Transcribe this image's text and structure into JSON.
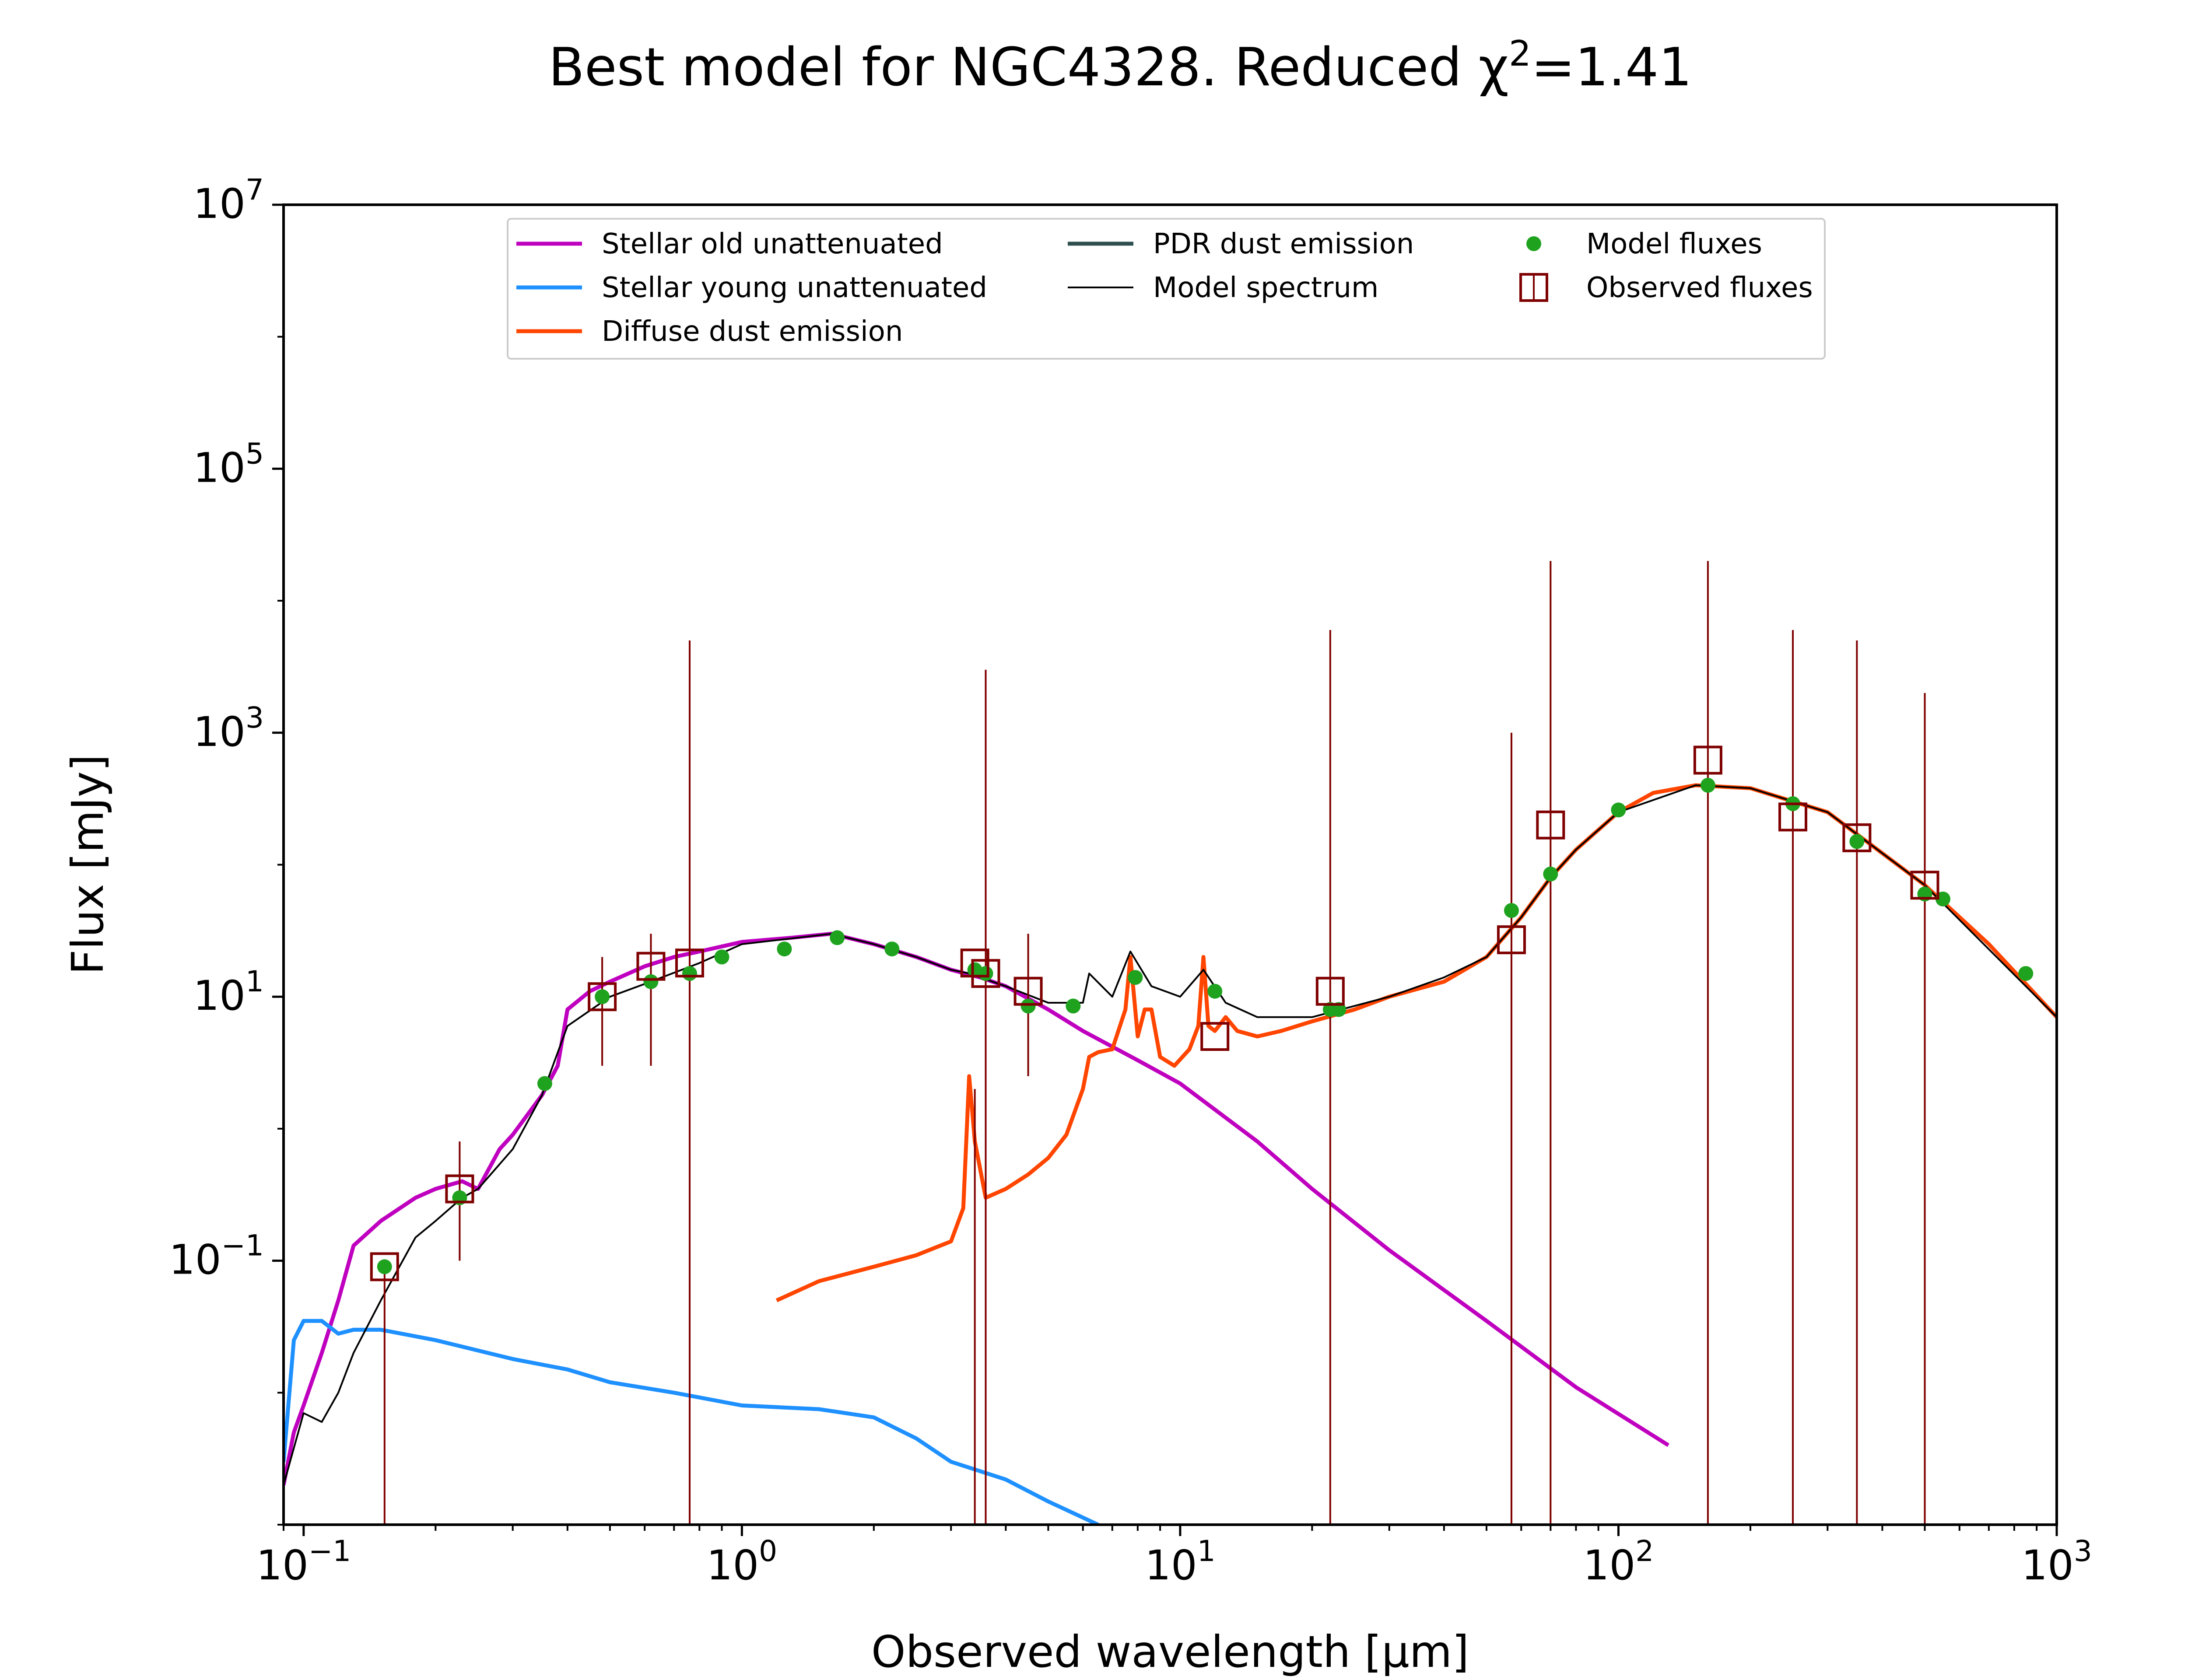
{
  "chart_data": {
    "type": "line",
    "title": "Best model for NGC4328. Reduced χ²=1.41",
    "title_prefix": "Best model for NGC4328. Reduced χ",
    "title_sup": "2",
    "title_suffix": "=1.41",
    "xlabel": "Observed wavelength [μm]",
    "ylabel": "Flux [mJy]",
    "x_scale": "log",
    "y_scale": "log",
    "xlim": [
      0.09,
      1000
    ],
    "ylim": [
      0.001,
      10000000
    ],
    "x_ticks": [
      {
        "base": "10",
        "exp": "−1",
        "value": 0.1
      },
      {
        "base": "10",
        "exp": "0",
        "value": 1
      },
      {
        "base": "10",
        "exp": "1",
        "value": 10
      },
      {
        "base": "10",
        "exp": "2",
        "value": 100
      },
      {
        "base": "10",
        "exp": "3",
        "value": 1000
      }
    ],
    "y_ticks": [
      {
        "base": "10",
        "exp": "−1",
        "value": 0.1
      },
      {
        "base": "10",
        "exp": "1",
        "value": 10
      },
      {
        "base": "10",
        "exp": "3",
        "value": 1000
      },
      {
        "base": "10",
        "exp": "5",
        "value": 100000
      },
      {
        "base": "10",
        "exp": "7",
        "value": 10000000
      }
    ],
    "grid": false,
    "legend_position": "top-center",
    "legend": [
      {
        "label": "Stellar old unattenuated",
        "kind": "line",
        "color": "#bf00bf"
      },
      {
        "label": "Stellar young unattenuated",
        "kind": "line",
        "color": "#1e90ff"
      },
      {
        "label": "Diffuse dust emission",
        "kind": "line",
        "color": "#ff4500"
      },
      {
        "label": "PDR dust emission",
        "kind": "line",
        "color": "#2f4f4f"
      },
      {
        "label": "Model spectrum",
        "kind": "line",
        "color": "#000000"
      },
      {
        "label": "Model fluxes",
        "kind": "dot",
        "color": "#1fa31f"
      },
      {
        "label": "Observed fluxes",
        "kind": "square",
        "color": "#7f0000"
      }
    ],
    "series": [
      {
        "name": "Stellar old unattenuated",
        "color": "#bf00bf",
        "x": [
          0.09,
          0.095,
          0.1,
          0.11,
          0.12,
          0.13,
          0.15,
          0.18,
          0.2,
          0.23,
          0.25,
          0.28,
          0.3,
          0.35,
          0.38,
          0.4,
          0.45,
          0.5,
          0.6,
          0.7,
          0.8,
          1.0,
          1.3,
          1.6,
          2.0,
          2.5,
          3.0,
          3.5,
          4.0,
          5.0,
          6.0,
          8.0,
          10.0,
          15.0,
          20.0,
          30.0,
          50.0,
          80.0,
          130.0
        ],
        "y": [
          0.002,
          0.005,
          0.008,
          0.02,
          0.05,
          0.13,
          0.2,
          0.3,
          0.35,
          0.4,
          0.35,
          0.7,
          0.9,
          1.8,
          3.0,
          8.0,
          11.0,
          13.0,
          17.0,
          20.0,
          22.0,
          26.0,
          28.0,
          30.0,
          25.0,
          20.0,
          16.0,
          14.0,
          12.0,
          8.0,
          5.5,
          3.3,
          2.2,
          0.8,
          0.35,
          0.12,
          0.035,
          0.011,
          0.004
        ]
      },
      {
        "name": "Stellar young unattenuated",
        "color": "#1e90ff",
        "x": [
          0.09,
          0.095,
          0.1,
          0.11,
          0.12,
          0.13,
          0.15,
          0.2,
          0.3,
          0.4,
          0.5,
          0.7,
          1.0,
          1.5,
          2.0,
          2.5,
          3.0,
          4.0,
          5.0,
          6.5
        ],
        "y": [
          0.003,
          0.025,
          0.035,
          0.035,
          0.028,
          0.03,
          0.03,
          0.025,
          0.018,
          0.015,
          0.012,
          0.01,
          0.008,
          0.0075,
          0.0065,
          0.0045,
          0.003,
          0.0022,
          0.0015,
          0.001
        ]
      },
      {
        "name": "Diffuse dust emission",
        "color": "#ff4500",
        "x": [
          1.2,
          1.5,
          2.0,
          2.5,
          3.0,
          3.2,
          3.3,
          3.4,
          3.6,
          4.0,
          4.5,
          5.0,
          5.5,
          6.0,
          6.2,
          6.5,
          7.0,
          7.5,
          7.7,
          8.0,
          8.3,
          8.6,
          9.0,
          9.7,
          10.5,
          11.0,
          11.3,
          11.6,
          12.0,
          12.7,
          13.5,
          15.0,
          17.0,
          20.0,
          25.0,
          30.0,
          40.0,
          50.0,
          60.0,
          70.0,
          80.0,
          100.0,
          120.0,
          150.0,
          200.0,
          300.0,
          500.0,
          700.0,
          1000.0
        ],
        "y": [
          0.05,
          0.07,
          0.09,
          0.11,
          0.14,
          0.25,
          2.5,
          0.8,
          0.3,
          0.35,
          0.45,
          0.6,
          0.9,
          2.0,
          3.5,
          3.8,
          4.0,
          8.0,
          20.0,
          5.0,
          8.0,
          8.0,
          3.5,
          3.0,
          4.0,
          6.0,
          20.0,
          6.0,
          5.5,
          7.0,
          5.5,
          5.0,
          5.5,
          6.5,
          8.0,
          10.0,
          13.0,
          20.0,
          40.0,
          80.0,
          130.0,
          250.0,
          350.0,
          400.0,
          380.0,
          250.0,
          70.0,
          25.0,
          7.0
        ]
      },
      {
        "name": "Model spectrum",
        "color": "#000000",
        "x": [
          0.09,
          0.1,
          0.11,
          0.12,
          0.13,
          0.15,
          0.18,
          0.2,
          0.23,
          0.25,
          0.3,
          0.35,
          0.4,
          0.5,
          0.6,
          0.8,
          1.0,
          1.6,
          2.0,
          2.5,
          3.0,
          3.3,
          3.5,
          4.0,
          5.0,
          6.0,
          6.2,
          7.0,
          7.7,
          8.6,
          10.0,
          11.3,
          12.7,
          15.0,
          20.0,
          30.0,
          40.0,
          50.0,
          60.0,
          70.0,
          80.0,
          100.0,
          150.0,
          200.0,
          300.0,
          500.0,
          1000.0
        ],
        "y": [
          0.002,
          0.007,
          0.006,
          0.01,
          0.02,
          0.05,
          0.15,
          0.2,
          0.3,
          0.35,
          0.7,
          1.8,
          6.0,
          10.0,
          12.5,
          18.0,
          25.0,
          30.0,
          25.0,
          20.0,
          16.0,
          15.0,
          14.0,
          12.0,
          9.0,
          9.0,
          15.0,
          10.0,
          22.0,
          12.0,
          10.0,
          16.0,
          9.0,
          7.0,
          7.0,
          10.0,
          14.0,
          20.0,
          40.0,
          80.0,
          130.0,
          250.0,
          400.0,
          380.0,
          250.0,
          70.0,
          7.0
        ]
      }
    ],
    "model_fluxes": {
      "name": "Model fluxes",
      "color": "#1fa31f",
      "x": [
        0.153,
        0.227,
        0.355,
        0.48,
        0.62,
        0.76,
        0.9,
        1.25,
        1.65,
        2.2,
        3.4,
        3.6,
        4.5,
        5.7,
        7.9,
        12.0,
        22.0,
        23.0,
        57.0,
        70.0,
        100.0,
        160.0,
        250.0,
        350.0,
        500.0,
        550.0,
        850.0
      ],
      "y": [
        0.09,
        0.3,
        2.2,
        10.0,
        13.0,
        15.0,
        20.0,
        23.0,
        28.0,
        23.0,
        16.0,
        15.0,
        8.5,
        8.5,
        14.0,
        11.0,
        8.0,
        8.0,
        45.0,
        85.0,
        260.0,
        400.0,
        290.0,
        150.0,
        60.0,
        55.0,
        15.0
      ]
    },
    "observed_fluxes": {
      "name": "Observed fluxes",
      "color": "#7f0000",
      "x": [
        0.153,
        0.227,
        0.48,
        0.62,
        0.76,
        3.4,
        3.6,
        4.5,
        12.0,
        22.0,
        57.0,
        70.0,
        160.0,
        250.0,
        350.0,
        500.0
      ],
      "y": [
        0.09,
        0.35,
        10.0,
        17.0,
        18.0,
        18.0,
        15.0,
        11.0,
        5.0,
        11.0,
        27.0,
        200.0,
        620.0,
        230.0,
        160.0,
        70.0
      ],
      "y_err_low": [
        0.001,
        0.1,
        3.0,
        3.0,
        0.001,
        0.001,
        0.001,
        2.5,
        0.001,
        0.001,
        0.001,
        0.001,
        0.001,
        0.001,
        0.001,
        0.001
      ],
      "y_err_high": [
        0.1,
        0.8,
        20.0,
        30.0,
        5000.0,
        2.0,
        3000.0,
        30.0,
        0.001,
        6000.0,
        1000.0,
        20000.0,
        20000.0,
        6000.0,
        5000.0,
        2000.0
      ]
    }
  }
}
